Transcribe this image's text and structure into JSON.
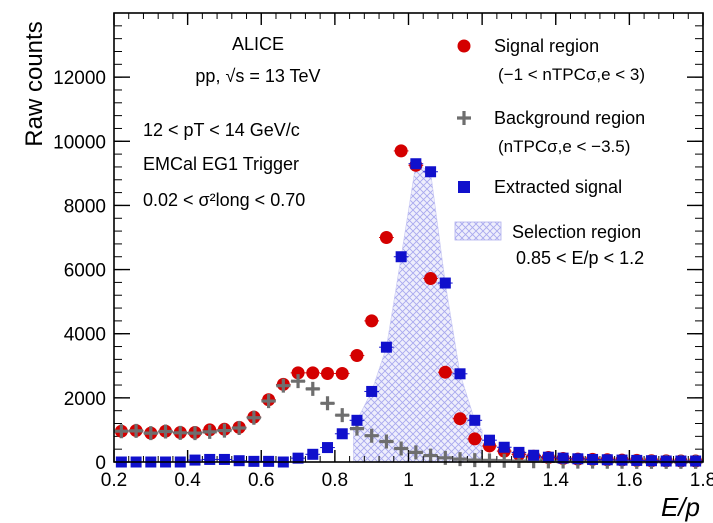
{
  "chart_data": {
    "type": "scatter",
    "title": "",
    "xlabel": "E/p",
    "ylabel": "Raw counts",
    "xlim": [
      0.2,
      1.8
    ],
    "ylim": [
      0,
      14000
    ],
    "x_ticks": [
      0.2,
      0.4,
      0.6,
      0.8,
      1,
      1.2,
      1.4,
      1.6,
      1.8
    ],
    "y_ticks": [
      0,
      2000,
      4000,
      6000,
      8000,
      10000,
      12000
    ],
    "x_tick_labels": [
      "0.2",
      "0.4",
      "0.6",
      "0.8",
      "1",
      "1.2",
      "1.4",
      "1.6",
      "1.8"
    ],
    "y_tick_labels": [
      "0",
      "2000",
      "4000",
      "6000",
      "8000",
      "10000",
      "12000"
    ],
    "x": [
      0.22,
      0.26,
      0.3,
      0.34,
      0.38,
      0.42,
      0.46,
      0.5,
      0.54,
      0.58,
      0.62,
      0.66,
      0.7,
      0.74,
      0.78,
      0.82,
      0.86,
      0.9,
      0.94,
      0.98,
      1.02,
      1.06,
      1.1,
      1.14,
      1.18,
      1.22,
      1.26,
      1.3,
      1.34,
      1.38,
      1.42,
      1.46,
      1.5,
      1.54,
      1.58,
      1.62,
      1.66,
      1.7,
      1.74,
      1.78
    ],
    "series": [
      {
        "name": "Signal region",
        "color": "#d40000",
        "marker": "circle",
        "values": [
          960,
          980,
          900,
          960,
          920,
          920,
          1000,
          1020,
          1080,
          1400,
          1940,
          2420,
          2780,
          2780,
          2760,
          2760,
          3320,
          4400,
          7000,
          9700,
          9250,
          5720,
          2800,
          1350,
          720,
          500,
          340,
          240,
          180,
          140,
          110,
          90,
          80,
          70,
          60,
          50,
          40,
          35,
          30,
          30
        ]
      },
      {
        "name": "Background region",
        "color": "#6e6e6e",
        "marker": "cross",
        "values": [
          960,
          970,
          900,
          950,
          910,
          900,
          940,
          980,
          1060,
          1380,
          1900,
          2380,
          2520,
          2280,
          1830,
          1460,
          1040,
          820,
          640,
          420,
          300,
          200,
          130,
          90,
          60,
          50,
          40,
          30,
          25,
          20,
          15,
          12,
          10,
          8,
          6,
          5,
          4,
          3,
          3,
          2
        ]
      },
      {
        "name": "Extracted signal",
        "color": "#1010cc",
        "marker": "square",
        "values": [
          0,
          0,
          0,
          0,
          0,
          60,
          80,
          80,
          40,
          20,
          20,
          0,
          120,
          240,
          450,
          880,
          1300,
          2200,
          3580,
          6400,
          9300,
          9050,
          5580,
          2750,
          1300,
          680,
          460,
          300,
          210,
          150,
          120,
          100,
          80,
          70,
          60,
          50,
          40,
          30,
          30,
          30
        ]
      }
    ],
    "selection_region": {
      "name": "Selection region",
      "range_text": "0.85 < E/p < 1.2",
      "xmin": 0.85,
      "xmax": 1.2,
      "color": "#b9b9f0"
    },
    "annotations": [
      "ALICE",
      "pp, √s = 13 TeV",
      "12 < pT < 14 GeV/c",
      "EMCal EG1 Trigger",
      "0.02 < σ²long < 0.70"
    ],
    "legend": [
      {
        "label": "Signal region",
        "sub": "(−1 < nTPCσ,e < 3)"
      },
      {
        "label": "Background region",
        "sub": "(nTPCσ,e < −3.5)"
      },
      {
        "label": "Extracted signal"
      },
      {
        "label": "Selection region",
        "sub": "0.85 < E/p < 1.2"
      }
    ],
    "legend_position": "top-right",
    "grid": false
  }
}
